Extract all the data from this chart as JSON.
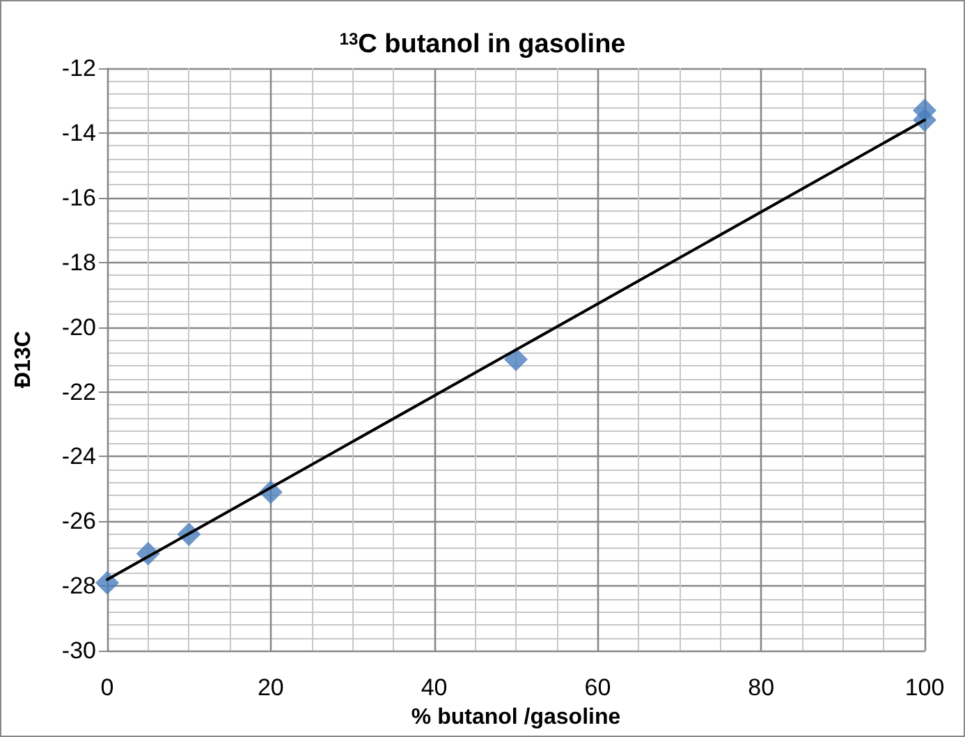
{
  "chart_data": {
    "type": "scatter",
    "title": "$^{13}$C butanol in gasoline",
    "xlabel": "% butanol /gasoline",
    "ylabel": "Ð13C",
    "series": [
      {
        "color": "#4a7ebb",
        "x": [
          0,
          5,
          10,
          20,
          50,
          100,
          100
        ],
        "values": [
          -27.9,
          -27.0,
          -26.4,
          -25.1,
          -21.0,
          -13.3,
          -13.6
        ],
        "marker": "diamond"
      },
      {
        "type": "line",
        "color": "#000000",
        "x": [
          0,
          100
        ],
        "values": [
          -27.8,
          -13.6
        ],
        "marker": "none",
        "line_style": "solid"
      }
    ],
    "xlim": [
      0,
      100
    ],
    "xticks": [
      0,
      20,
      40,
      60,
      80,
      100
    ],
    "ylim": [
      -30,
      -12
    ],
    "yticks": [
      -30,
      -28,
      -26,
      -24,
      -22,
      -20,
      -18,
      -16,
      -14,
      -12
    ],
    "grid": true
  }
}
